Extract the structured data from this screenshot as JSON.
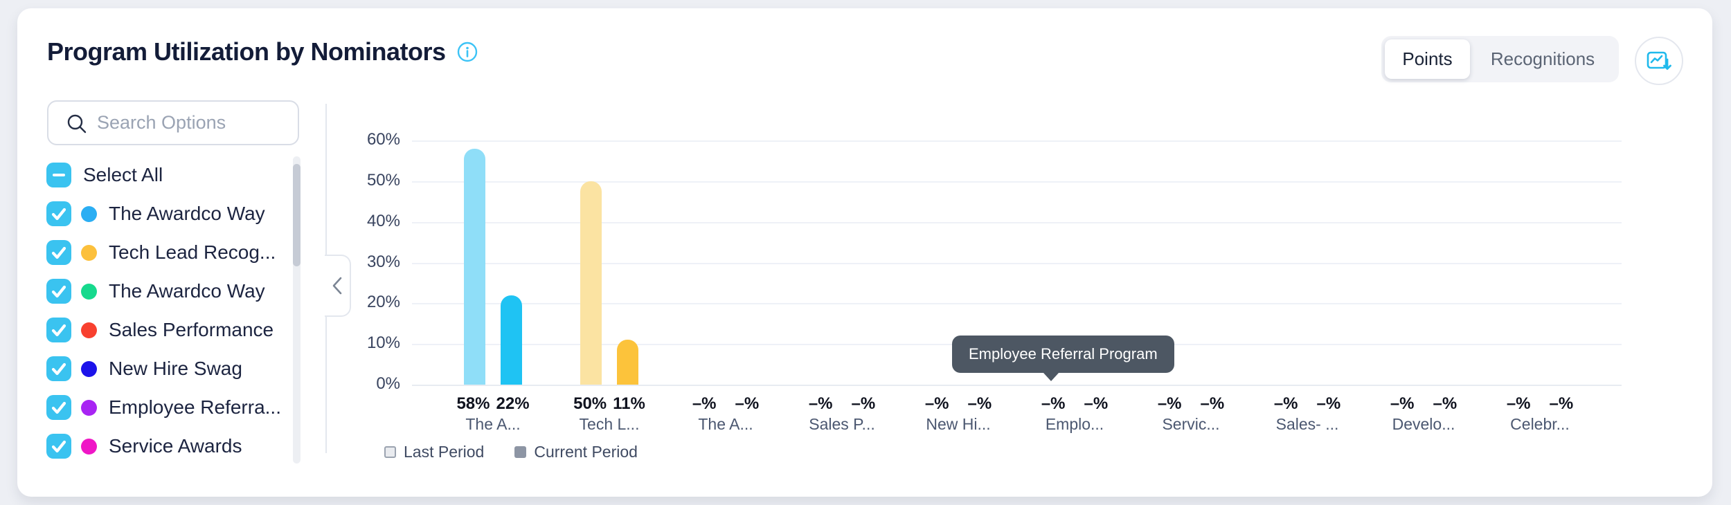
{
  "header": {
    "title": "Program Utilization by Nominators",
    "toggle": {
      "options": [
        "Points",
        "Recognitions"
      ],
      "active": "Points"
    }
  },
  "sidebar": {
    "search": {
      "placeholder": "Search Options",
      "value": ""
    },
    "select_all": {
      "label": "Select All",
      "state": "indeterminate"
    },
    "items": [
      {
        "label": "The Awardco Way",
        "color": "#2baef3",
        "checked": true
      },
      {
        "label": "Tech Lead Recog...",
        "color": "#fcc03c",
        "checked": true
      },
      {
        "label": "The Awardco Way",
        "color": "#16d98d",
        "checked": true
      },
      {
        "label": "Sales Performance",
        "color": "#f8402f",
        "checked": true
      },
      {
        "label": "New Hire Swag",
        "color": "#1c13ea",
        "checked": true
      },
      {
        "label": "Employee Referra...",
        "color": "#a825f3",
        "checked": true
      },
      {
        "label": "Service Awards",
        "color": "#ef17c6",
        "checked": true
      }
    ]
  },
  "tooltip": {
    "text": "Employee Referral Program"
  },
  "legend": [
    {
      "label": "Last Period",
      "style": "outline"
    },
    {
      "label": "Current Period",
      "style": "filled"
    }
  ],
  "chart_data": {
    "type": "bar",
    "title": "Program Utilization by Nominators",
    "xlabel": "",
    "ylabel": "",
    "ylim": [
      0,
      60
    ],
    "yticks": [
      "0%",
      "10%",
      "20%",
      "30%",
      "40%",
      "50%",
      "60%"
    ],
    "grid": true,
    "legend_position": "bottom-left",
    "categories": [
      "The A...",
      "Tech L...",
      "The A...",
      "Sales P...",
      "New Hi...",
      "Emplo...",
      "Servic...",
      "Sales- ...",
      "Develo...",
      "Celebr..."
    ],
    "series": [
      {
        "name": "Last Period",
        "values": [
          58,
          50,
          null,
          null,
          null,
          null,
          null,
          null,
          null,
          null
        ]
      },
      {
        "name": "Current Period",
        "values": [
          22,
          11,
          null,
          null,
          null,
          null,
          null,
          null,
          null,
          null
        ]
      }
    ],
    "null_label": "–%",
    "group_colors": [
      {
        "last": "#8fdef8",
        "current": "#1fc3f3"
      },
      {
        "last": "#fbe3a2",
        "current": "#fcc33b"
      },
      null,
      null,
      null,
      null,
      null,
      null,
      null,
      null
    ]
  }
}
